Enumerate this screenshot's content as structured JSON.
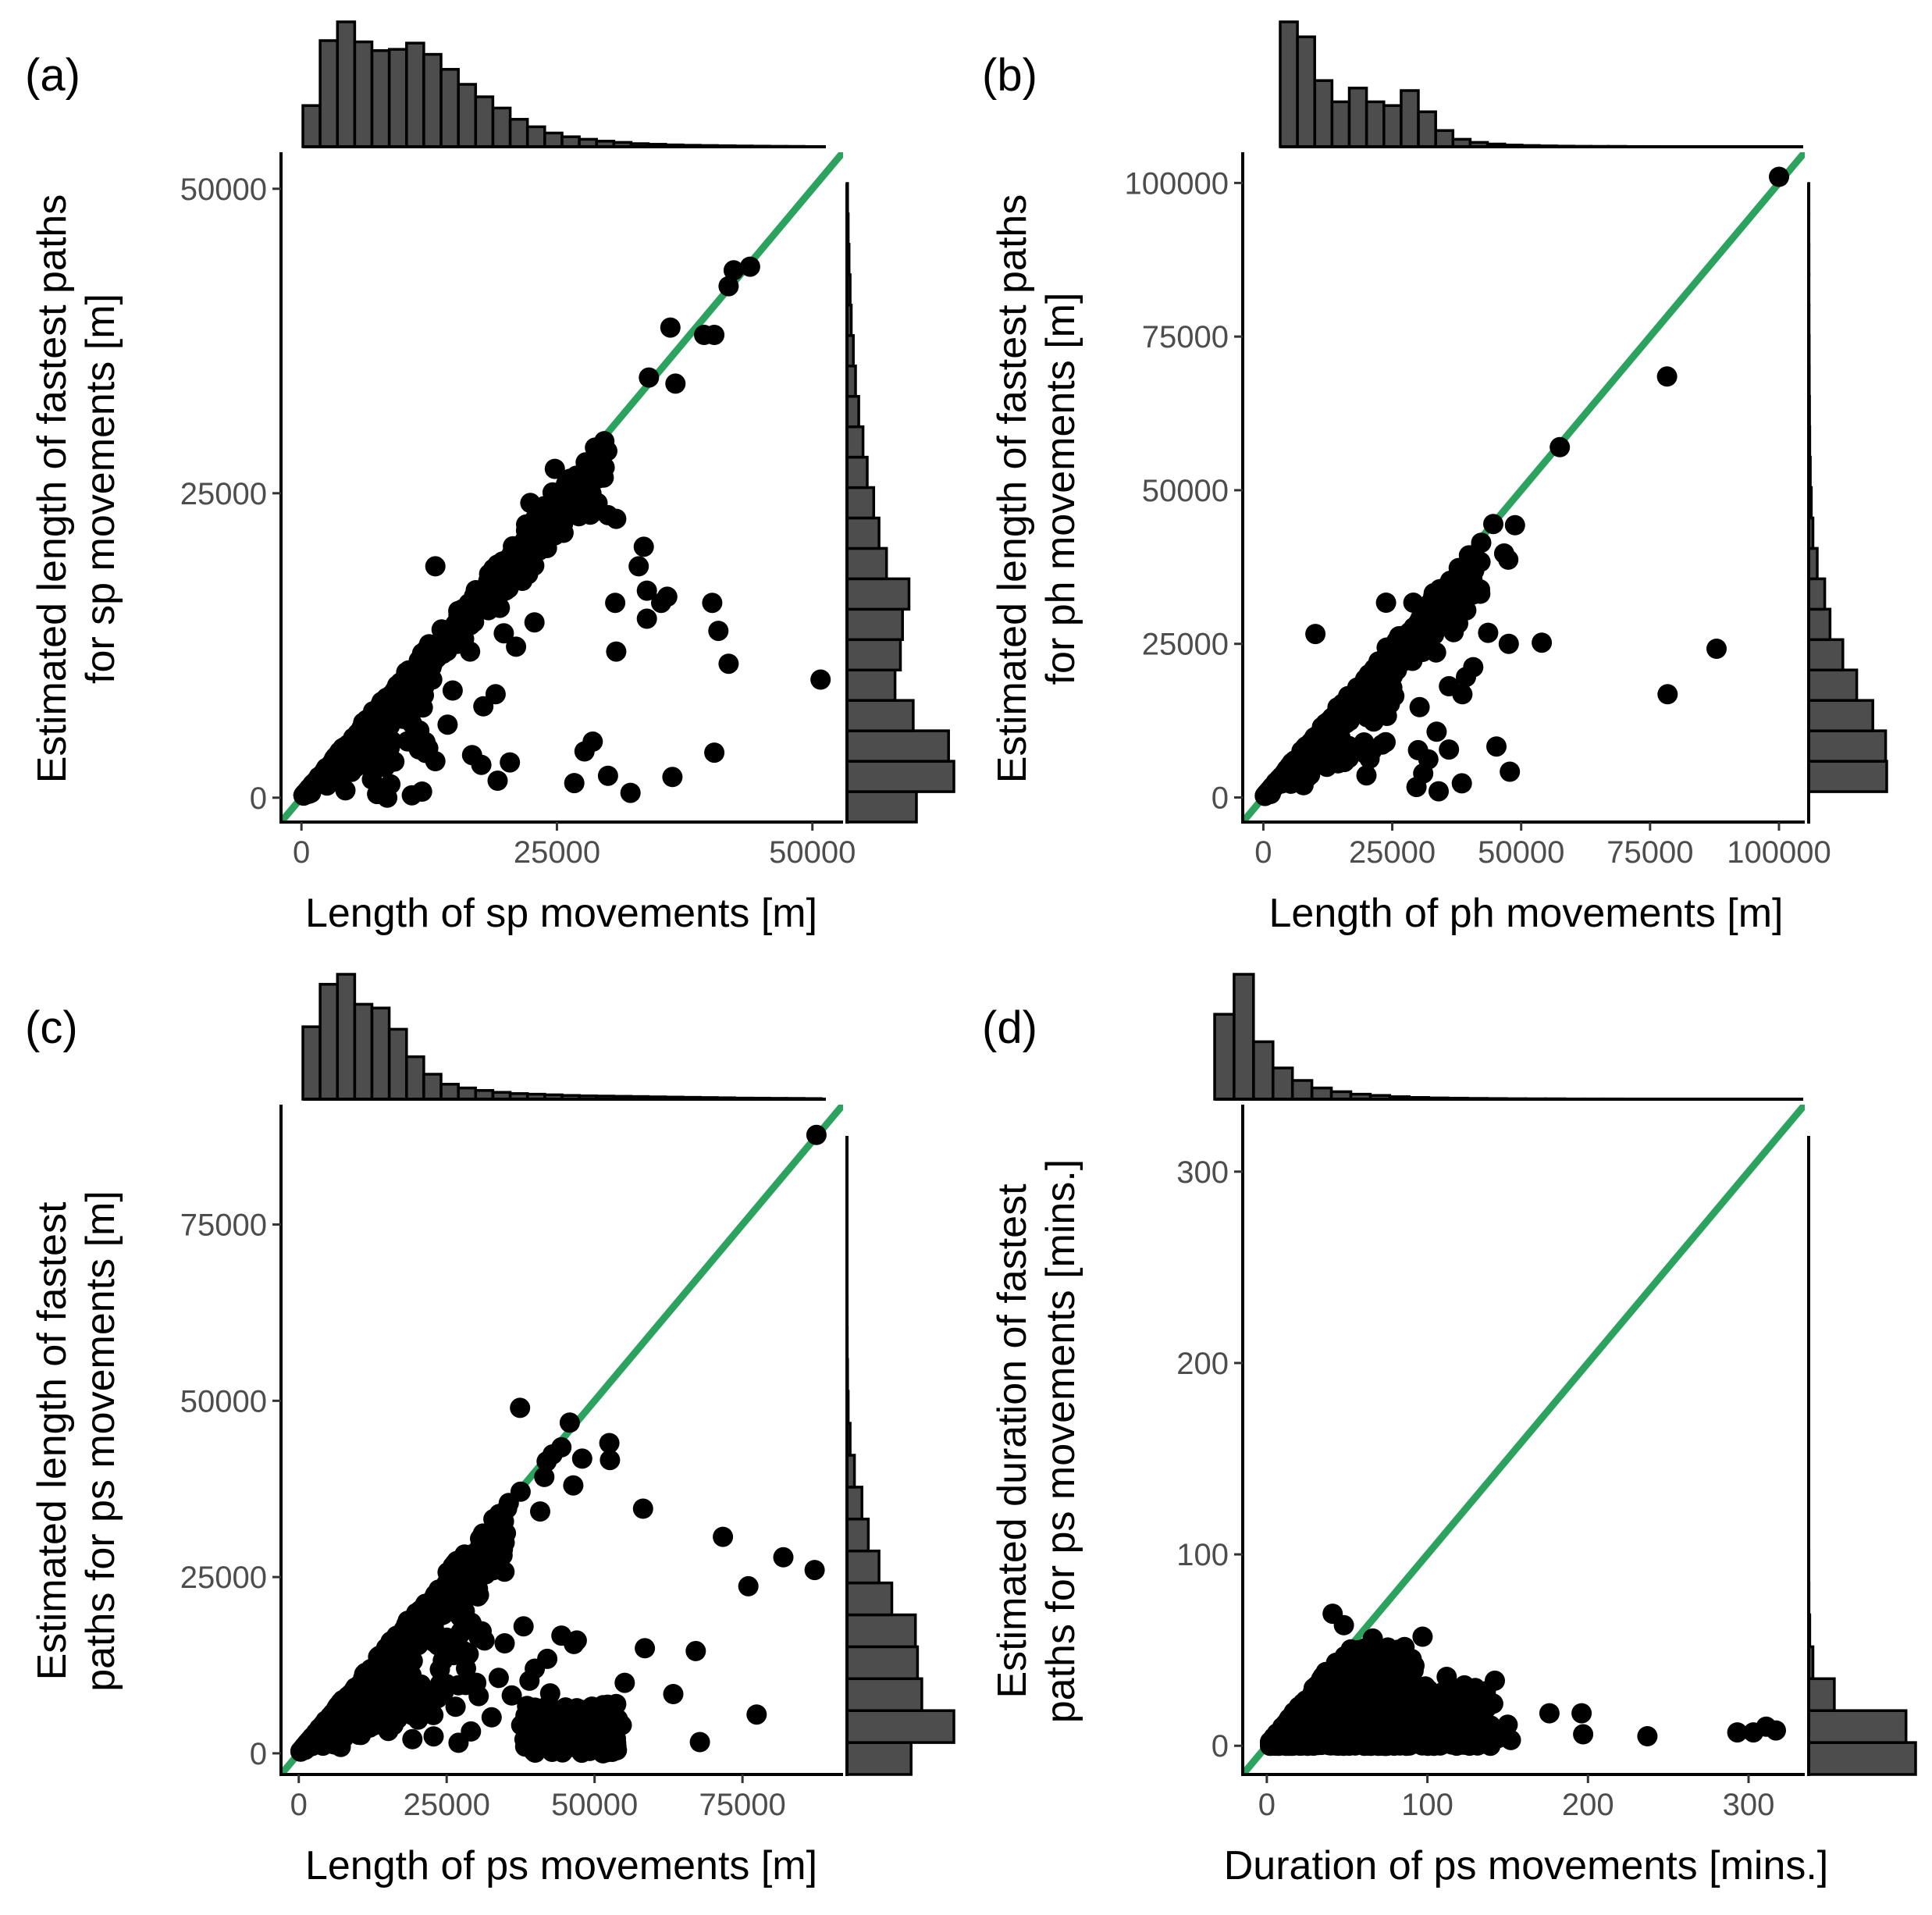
{
  "colors": {
    "points": "#000000",
    "identity_line": "#2ca25f",
    "histogram_fill": "#4d4d4d",
    "histogram_stroke": "#000000",
    "tick_text": "#4d4d4d"
  },
  "chart_data": [
    {
      "type": "scatter",
      "panel": "(a)",
      "xlabel": "Length of sp movements [m]",
      "ylabel": [
        "Estimated length of fastest paths",
        "for sp movements [m]"
      ],
      "xlim": [
        -2000,
        53000
      ],
      "ylim": [
        -2000,
        53000
      ],
      "xticks": [
        0,
        25000,
        50000
      ],
      "yticks": [
        0,
        25000,
        50000
      ],
      "identity_line": true,
      "marginal_x": [
        0.33,
        0.85,
        1.0,
        0.84,
        0.77,
        0.78,
        0.83,
        0.74,
        0.62,
        0.5,
        0.4,
        0.31,
        0.22,
        0.16,
        0.11,
        0.08,
        0.06,
        0.045,
        0.035,
        0.025,
        0.02,
        0.015,
        0.012,
        0.01,
        0.008,
        0.006,
        0.005,
        0.004,
        0.003,
        0.002
      ],
      "marginal_y": [
        0.65,
        1.0,
        0.95,
        0.62,
        0.45,
        0.5,
        0.52,
        0.58,
        0.37,
        0.3,
        0.25,
        0.19,
        0.15,
        0.11,
        0.08,
        0.06,
        0.04,
        0.03,
        0.02,
        0.012,
        0.006
      ],
      "outliers": [
        [
          50800,
          9700
        ],
        [
          41800,
          11000
        ],
        [
          40200,
          16000
        ],
        [
          40800,
          13700
        ],
        [
          40400,
          3700
        ],
        [
          36300,
          1700
        ],
        [
          35200,
          16000
        ],
        [
          35800,
          16500
        ],
        [
          33800,
          14700
        ],
        [
          32200,
          400
        ],
        [
          30700,
          16000
        ],
        [
          30800,
          12000
        ],
        [
          30000,
          1800
        ],
        [
          28500,
          4600
        ],
        [
          27700,
          3800
        ],
        [
          26700,
          1200
        ],
        [
          33800,
          17000
        ],
        [
          33500,
          20600
        ],
        [
          33000,
          19000
        ],
        [
          30000,
          23200
        ],
        [
          30800,
          22900
        ],
        [
          36600,
          34000
        ],
        [
          39400,
          38000
        ],
        [
          40400,
          38000
        ],
        [
          41800,
          42000
        ],
        [
          42300,
          43300
        ],
        [
          43900,
          43600
        ],
        [
          36100,
          38600
        ],
        [
          34000,
          34500
        ],
        [
          27300,
          24800
        ],
        [
          25900,
          23000
        ],
        [
          22400,
          24200
        ],
        [
          24800,
          27000
        ],
        [
          20500,
          19500
        ],
        [
          18300,
          15400
        ],
        [
          19800,
          13500
        ],
        [
          21000,
          12400
        ],
        [
          22800,
          14400
        ],
        [
          16500,
          12000
        ],
        [
          19000,
          8500
        ],
        [
          14800,
          8800
        ],
        [
          14300,
          6000
        ],
        [
          11800,
          4700
        ],
        [
          13100,
          3000
        ],
        [
          10800,
          200
        ],
        [
          11800,
          500
        ],
        [
          17800,
          7500
        ],
        [
          20400,
          2900
        ],
        [
          19200,
          1400
        ],
        [
          17600,
          2700
        ],
        [
          16700,
          3500
        ],
        [
          8700,
          1100
        ],
        [
          7400,
          300
        ],
        [
          8400,
          0
        ],
        [
          6900,
          1500
        ],
        [
          5300,
          2500
        ],
        [
          4300,
          600
        ],
        [
          2500,
          1000
        ],
        [
          12800,
          9700
        ],
        [
          13100,
          19000
        ]
      ]
    },
    {
      "type": "scatter",
      "panel": "(b)",
      "xlabel": "Length of ph movements [m]",
      "ylabel": [
        "Estimated length of fastest paths",
        "for ph movements [m]"
      ],
      "xlim": [
        -4000,
        105000
      ],
      "ylim": [
        -4000,
        105000
      ],
      "xticks": [
        0,
        25000,
        50000,
        75000,
        100000
      ],
      "yticks": [
        0,
        25000,
        50000,
        75000,
        100000
      ],
      "identity_line": true,
      "marginal_x": [
        1.0,
        0.88,
        0.53,
        0.36,
        0.47,
        0.36,
        0.33,
        0.45,
        0.28,
        0.13,
        0.06,
        0.035,
        0.022,
        0.014,
        0.01,
        0.007,
        0.005,
        0.004,
        0.003,
        0.003,
        0.002,
        0.002,
        0.001,
        0.001,
        0.001,
        0.001,
        0.001,
        0.001,
        0.001,
        0.001
      ],
      "marginal_y": [
        0.0,
        0.73,
        0.72,
        0.6,
        0.45,
        0.32,
        0.2,
        0.15,
        0.08,
        0.04,
        0.025,
        0.015,
        0.01,
        0.008,
        0.006,
        0.005,
        0.004,
        0.003,
        0.003,
        0.002,
        0.002
      ],
      "outliers": [
        [
          100000,
          101000
        ],
        [
          78300,
          68500
        ],
        [
          78400,
          16800
        ],
        [
          87900,
          24200
        ],
        [
          57500,
          57000
        ],
        [
          54000,
          25200
        ],
        [
          48800,
          44300
        ],
        [
          47500,
          38700
        ],
        [
          46700,
          39700
        ],
        [
          47600,
          25000
        ],
        [
          47800,
          4200
        ],
        [
          45200,
          8300
        ],
        [
          43600,
          26800
        ],
        [
          44600,
          44500
        ],
        [
          40700,
          21200
        ],
        [
          38600,
          16800
        ],
        [
          38500,
          2300
        ],
        [
          36900,
          26900
        ],
        [
          36000,
          7800
        ],
        [
          32000,
          6200
        ],
        [
          30000,
          7700
        ],
        [
          29700,
          1700
        ],
        [
          31000,
          3900
        ],
        [
          34000,
          1000
        ],
        [
          27300,
          22200
        ],
        [
          29100,
          31700
        ],
        [
          30900,
          23700
        ],
        [
          25400,
          16500
        ],
        [
          23800,
          31700
        ],
        [
          10100,
          26600
        ],
        [
          12300,
          5000
        ],
        [
          20000,
          3600
        ],
        [
          7800,
          2000
        ],
        [
          23700,
          9000
        ],
        [
          20600,
          6300
        ],
        [
          33600,
          10700
        ],
        [
          30300,
          14700
        ],
        [
          33500,
          23600
        ],
        [
          36000,
          18100
        ],
        [
          39300,
          19600
        ]
      ]
    },
    {
      "type": "scatter",
      "panel": "(c)",
      "xlabel": "Length of ps movements [m]",
      "ylabel": [
        "Estimated length of fastest",
        "paths for ps movements [m]"
      ],
      "xlim": [
        -3000,
        92000
      ],
      "ylim": [
        -3000,
        92000
      ],
      "xticks": [
        0,
        25000,
        50000,
        75000
      ],
      "yticks": [
        0,
        25000,
        50000,
        75000
      ],
      "identity_line": true,
      "marginal_x": [
        0.58,
        0.92,
        1.0,
        0.76,
        0.73,
        0.56,
        0.34,
        0.2,
        0.12,
        0.09,
        0.07,
        0.055,
        0.045,
        0.04,
        0.035,
        0.03,
        0.027,
        0.025,
        0.023,
        0.021,
        0.019,
        0.017,
        0.015,
        0.013,
        0.011,
        0.009,
        0.008,
        0.007,
        0.006,
        0.005
      ],
      "marginal_y": [
        0.6,
        1.0,
        0.7,
        0.66,
        0.64,
        0.42,
        0.3,
        0.2,
        0.14,
        0.07,
        0.03,
        0.012,
        0.006,
        0.003,
        0.002,
        0.001,
        0.001,
        0.001,
        0.0,
        0.0
      ],
      "outliers": [
        [
          87500,
          87700
        ],
        [
          87200,
          26000
        ],
        [
          81900,
          27800
        ],
        [
          76000,
          23700
        ],
        [
          71700,
          30700
        ],
        [
          77400,
          5500
        ],
        [
          67100,
          14500
        ],
        [
          67800,
          1600
        ],
        [
          63300,
          8400
        ],
        [
          58500,
          14900
        ],
        [
          54600,
          4000
        ],
        [
          52200,
          6900
        ],
        [
          55100,
          10000
        ],
        [
          52500,
          44000
        ],
        [
          50700,
          1000
        ],
        [
          48700,
          2000
        ],
        [
          47000,
          6400
        ],
        [
          46500,
          15500
        ],
        [
          47000,
          16000
        ],
        [
          44400,
          16700
        ],
        [
          42000,
          13400
        ],
        [
          42500,
          8500
        ],
        [
          39900,
          12000
        ],
        [
          38000,
          18000
        ],
        [
          39000,
          10300
        ],
        [
          37600,
          4000
        ],
        [
          34800,
          15600
        ],
        [
          36000,
          8200
        ],
        [
          33800,
          10700
        ],
        [
          31400,
          16000
        ],
        [
          29200,
          18500
        ],
        [
          30000,
          10000
        ],
        [
          32600,
          5100
        ],
        [
          29100,
          3100
        ],
        [
          26500,
          6600
        ],
        [
          24500,
          8700
        ],
        [
          22100,
          7500
        ],
        [
          19200,
          5400
        ],
        [
          19200,
          2000
        ],
        [
          18700,
          7500
        ],
        [
          16000,
          4000
        ],
        [
          10700,
          6000
        ],
        [
          11300,
          3600
        ],
        [
          6000,
          1900
        ],
        [
          7100,
          900
        ],
        [
          10500,
          2600
        ],
        [
          27000,
          1500
        ],
        [
          22800,
          2400
        ],
        [
          37400,
          49000
        ],
        [
          40800,
          34300
        ],
        [
          41500,
          39200
        ],
        [
          37500,
          37100
        ],
        [
          35500,
          35500
        ],
        [
          45800,
          46900
        ],
        [
          44400,
          43400
        ],
        [
          41900,
          41400
        ],
        [
          42900,
          42400
        ],
        [
          47900,
          41800
        ],
        [
          46400,
          38000
        ],
        [
          52600,
          41600
        ],
        [
          58200,
          34700
        ],
        [
          46000,
          5700
        ],
        [
          48800,
          3500
        ],
        [
          44400,
          4400
        ],
        [
          43400,
          700
        ],
        [
          41200,
          2700
        ],
        [
          39600,
          5100
        ],
        [
          53600,
          2100
        ]
      ]
    },
    {
      "type": "scatter",
      "panel": "(d)",
      "xlabel": "Duration of ps movements [mins.]",
      "ylabel": [
        "Estimated duration of fastest",
        "paths for ps movements [mins.]"
      ],
      "xlim": [
        -15,
        335
      ],
      "ylim": [
        -15,
        335
      ],
      "xticks": [
        0,
        100,
        200,
        300
      ],
      "yticks": [
        0,
        100,
        200,
        300
      ],
      "identity_line": true,
      "marginal_x": [
        0.68,
        1.0,
        0.46,
        0.25,
        0.15,
        0.09,
        0.06,
        0.04,
        0.03,
        0.02,
        0.014,
        0.01,
        0.008,
        0.006,
        0.005,
        0.004,
        0.003,
        0.003,
        0.002,
        0.002,
        0.002,
        0.001,
        0.001,
        0.001,
        0.001,
        0.001,
        0.001,
        0.001,
        0.001,
        0.001
      ],
      "marginal_y": [
        1.0,
        0.91,
        0.24,
        0.04,
        0.01,
        0.003,
        0.002,
        0.001,
        0.0,
        0.0,
        0.0,
        0.0,
        0.0,
        0.0,
        0.0,
        0.0,
        0.0,
        0.0,
        0.0,
        0.0
      ],
      "outliers": [
        [
          41,
          69
        ],
        [
          48,
          63
        ],
        [
          57,
          50
        ],
        [
          66,
          56
        ],
        [
          97,
          57
        ],
        [
          112,
          36
        ],
        [
          124,
          29
        ],
        [
          142,
          34
        ],
        [
          141,
          22
        ],
        [
          150,
          11
        ],
        [
          152,
          3
        ],
        [
          144,
          4
        ],
        [
          131,
          7
        ],
        [
          121,
          8
        ],
        [
          176,
          17
        ],
        [
          196,
          17
        ],
        [
          197,
          6
        ],
        [
          237,
          5
        ],
        [
          293,
          7
        ],
        [
          303,
          7
        ],
        [
          311,
          10
        ],
        [
          317,
          8
        ],
        [
          100,
          20
        ],
        [
          88,
          30
        ],
        [
          104,
          10
        ],
        [
          79,
          39
        ],
        [
          70,
          44
        ],
        [
          60,
          48
        ],
        [
          84,
          13
        ],
        [
          93,
          25
        ],
        [
          134,
          15
        ],
        [
          118,
          18
        ]
      ]
    }
  ]
}
